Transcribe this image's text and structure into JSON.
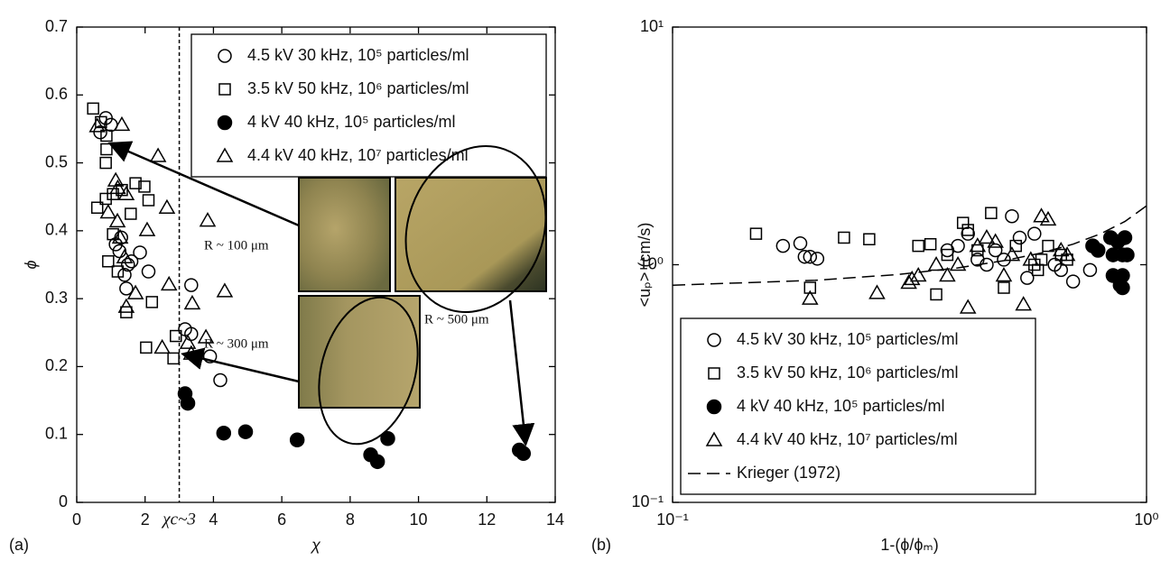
{
  "chart_data": [
    {
      "type": "scatter",
      "panel_label": "(a)",
      "xlabel": "χ",
      "ylabel": "ϕ",
      "xlim": [
        0,
        14
      ],
      "ylim": [
        0,
        0.7
      ],
      "xticks": [
        0,
        2,
        4,
        6,
        8,
        10,
        12,
        14
      ],
      "yticks": [
        0,
        0.1,
        0.2,
        0.3,
        0.4,
        0.5,
        0.6,
        0.7
      ],
      "vline": {
        "x": 3,
        "label": "χc~3"
      },
      "legend": "upper right",
      "annotations": [
        "R ~ 100 μm",
        "R ~ 300 μm",
        "R ~ 500 μm"
      ],
      "series": [
        {
          "name": "4.5 kV 30 kHz, 10⁵ particles/ml",
          "marker": "o",
          "color": "#000000",
          "x": [
            0.69,
            0.85,
            1.0,
            1.14,
            1.4,
            1.45,
            1.6,
            1.85,
            2.1,
            3.17,
            3.35,
            3.35,
            3.9,
            4.2,
            1.25,
            1.3,
            1.5
          ],
          "values": [
            0.545,
            0.566,
            0.556,
            0.38,
            0.335,
            0.315,
            0.355,
            0.368,
            0.34,
            0.255,
            0.248,
            0.32,
            0.215,
            0.18,
            0.37,
            0.39,
            0.35
          ]
        },
        {
          "name": "3.5 kV 50 kHz, 10⁶ particles/ml",
          "marker": "s",
          "color": "#000000",
          "x": [
            0.48,
            0.71,
            0.87,
            0.87,
            0.85,
            0.6,
            0.85,
            1.06,
            1.32,
            1.58,
            1.72,
            1.98,
            2.1,
            2.2,
            0.92,
            1.2,
            1.45,
            2.03,
            2.83,
            2.9,
            1.06
          ],
          "values": [
            0.58,
            0.56,
            0.54,
            0.52,
            0.5,
            0.434,
            0.447,
            0.454,
            0.46,
            0.425,
            0.47,
            0.465,
            0.445,
            0.295,
            0.355,
            0.34,
            0.28,
            0.228,
            0.212,
            0.245,
            0.395
          ]
        },
        {
          "name": "4 kV 40 kHz, 10⁵ particles/ml",
          "marker": "filled-o",
          "color": "#000000",
          "x": [
            3.17,
            3.25,
            4.3,
            4.94,
            6.45,
            8.6,
            8.8,
            9.1,
            12.95,
            13.07
          ],
          "values": [
            0.16,
            0.146,
            0.102,
            0.104,
            0.092,
            0.07,
            0.06,
            0.094,
            0.077,
            0.072
          ]
        },
        {
          "name": "4.4 kV 40 kHz, 10⁷ particles/ml",
          "marker": "^",
          "color": "#000000",
          "x": [
            0.6,
            1.32,
            1.14,
            1.2,
            1.45,
            2.38,
            2.64,
            2.06,
            1.19,
            1.27,
            1.4,
            1.45,
            1.72,
            2.7,
            3.38,
            3.83,
            4.33,
            3.78,
            2.5,
            3.25,
            3.35,
            0.92
          ],
          "values": [
            0.554,
            0.556,
            0.474,
            0.463,
            0.454,
            0.51,
            0.434,
            0.401,
            0.414,
            0.39,
            0.361,
            0.288,
            0.308,
            0.321,
            0.293,
            0.415,
            0.311,
            0.243,
            0.228,
            0.235,
            0.219,
            0.427
          ]
        }
      ]
    },
    {
      "type": "scatter",
      "panel_label": "(b)",
      "xlabel": "1-(ϕ/ϕₘ)",
      "ylabel": "<uₚ> (cm/s)",
      "xscale": "log",
      "yscale": "log",
      "xlim": [
        0.1,
        1
      ],
      "ylim": [
        0.1,
        10
      ],
      "xticks": [
        {
          "value": 0.1,
          "label": "10⁻¹"
        },
        {
          "value": 1,
          "label": "10⁰"
        }
      ],
      "yticks": [
        {
          "value": 0.1,
          "label": "10⁻¹"
        },
        {
          "value": 1,
          "label": "10⁰"
        },
        {
          "value": 10,
          "label": "10¹"
        }
      ],
      "legend": "lower left",
      "series": [
        {
          "name": "4.5 kV 30 kHz, 10⁵ particles/ml",
          "marker": "o",
          "color": "#000000",
          "x": [
            0.171,
            0.186,
            0.19,
            0.195,
            0.202,
            0.38,
            0.4,
            0.42,
            0.44,
            0.46,
            0.48,
            0.5,
            0.52,
            0.54,
            0.56,
            0.58,
            0.64,
            0.66,
            0.7,
            0.76
          ],
          "values": [
            1.2,
            1.23,
            1.08,
            1.08,
            1.06,
            1.15,
            1.2,
            1.35,
            1.05,
            1.0,
            1.15,
            1.05,
            1.6,
            1.3,
            0.88,
            1.35,
            1.0,
            0.95,
            0.85,
            0.95
          ]
        },
        {
          "name": "3.5 kV 50 kHz, 10⁶ particles/ml",
          "marker": "s",
          "color": "#000000",
          "x": [
            0.15,
            0.195,
            0.23,
            0.26,
            0.33,
            0.35,
            0.36,
            0.38,
            0.41,
            0.42,
            0.44,
            0.47,
            0.5,
            0.53,
            0.58,
            0.59,
            0.6,
            0.62,
            0.66,
            0.68
          ],
          "values": [
            1.35,
            0.8,
            1.3,
            1.28,
            1.2,
            1.22,
            0.75,
            1.1,
            1.5,
            1.4,
            1.15,
            1.65,
            0.8,
            1.2,
            1.0,
            0.95,
            1.05,
            1.2,
            1.1,
            1.05
          ]
        },
        {
          "name": "4 kV 40 kHz, 10⁵ particles/ml",
          "marker": "filled-o",
          "color": "#000000",
          "x": [
            0.77,
            0.79,
            0.84,
            0.85,
            0.85,
            0.87,
            0.88,
            0.89,
            0.89,
            0.9,
            0.91,
            0.89
          ],
          "values": [
            1.2,
            1.15,
            1.3,
            1.1,
            0.9,
            1.25,
            0.82,
            1.1,
            0.9,
            1.3,
            1.1,
            0.8
          ]
        },
        {
          "name": "4.4 kV 40 kHz, 10⁷ particles/ml",
          "marker": "^",
          "color": "#000000",
          "x": [
            0.195,
            0.27,
            0.315,
            0.32,
            0.33,
            0.36,
            0.38,
            0.4,
            0.42,
            0.44,
            0.46,
            0.48,
            0.5,
            0.52,
            0.55,
            0.57,
            0.6,
            0.62,
            0.66,
            0.68
          ],
          "values": [
            0.72,
            0.76,
            0.84,
            0.87,
            0.9,
            1.0,
            0.9,
            1.0,
            0.66,
            1.2,
            1.3,
            1.25,
            0.9,
            1.1,
            0.68,
            1.05,
            1.6,
            1.55,
            1.15,
            1.1
          ]
        },
        {
          "name": "Krieger (1972)",
          "marker": null,
          "linestyle": "--",
          "color": "#000000",
          "x": [
            0.1,
            0.2,
            0.3,
            0.4,
            0.5,
            0.6,
            0.7,
            0.8,
            0.9,
            1
          ],
          "values": [
            0.82,
            0.86,
            0.91,
            0.97,
            1.04,
            1.12,
            1.22,
            1.35,
            1.52,
            1.77
          ]
        }
      ]
    }
  ]
}
